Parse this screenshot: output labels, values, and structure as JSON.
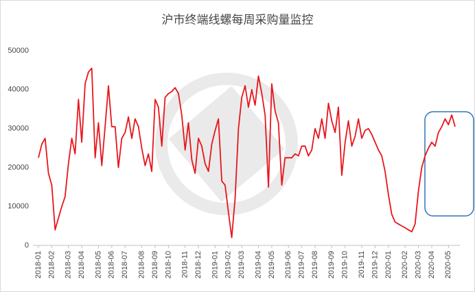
{
  "chart_data": {
    "type": "line",
    "title": "沪市终端线螺每周采购量监控",
    "categories": [
      "2018-01",
      null,
      null,
      null,
      "2018-02",
      null,
      null,
      null,
      null,
      "2018-03",
      null,
      null,
      null,
      "2018-04",
      null,
      null,
      null,
      null,
      "2018-05",
      null,
      null,
      null,
      "2018-06",
      null,
      null,
      null,
      "2018-07",
      null,
      null,
      null,
      null,
      "2018-08",
      null,
      null,
      null,
      "2018-09",
      null,
      null,
      null,
      "2018-10",
      null,
      null,
      null,
      null,
      "2018-11",
      null,
      null,
      null,
      "2018-12",
      null,
      null,
      null,
      null,
      "2019-01",
      null,
      null,
      null,
      "2019-02",
      null,
      null,
      null,
      "2019-03",
      null,
      null,
      null,
      null,
      "2019-04",
      null,
      null,
      null,
      "2019-05",
      null,
      null,
      null,
      null,
      "2019-06",
      null,
      null,
      null,
      "2019-07",
      null,
      null,
      null,
      "2019-08",
      null,
      null,
      null,
      null,
      "2019-09",
      null,
      null,
      null,
      "2019-10",
      null,
      null,
      null,
      null,
      "2019-11",
      null,
      null,
      null,
      "2019-12",
      null,
      null,
      null,
      "2020-01",
      null,
      null,
      null,
      null,
      "2020-02",
      null,
      null,
      null,
      "2020-03",
      null,
      null,
      null,
      "2020-04",
      null,
      null,
      null,
      null,
      "2020-05",
      null,
      null
    ],
    "series": [
      {
        "name": "沪市终端线螺每周采购量",
        "color": "#e8141b",
        "values": [
          22500,
          26000,
          27500,
          18500,
          15500,
          4000,
          7000,
          10000,
          12500,
          21000,
          27500,
          23500,
          37500,
          26500,
          41500,
          44500,
          45500,
          22500,
          31500,
          20500,
          30500,
          41000,
          30500,
          30500,
          20000,
          27500,
          29000,
          33000,
          27500,
          32500,
          30500,
          25000,
          20500,
          23500,
          19000,
          37500,
          35500,
          25500,
          38000,
          39000,
          39500,
          40500,
          39000,
          33500,
          24500,
          31500,
          22000,
          18500,
          27500,
          25500,
          21000,
          19000,
          26000,
          29500,
          32500,
          16500,
          15500,
          8500,
          2000,
          12000,
          30000,
          38000,
          41000,
          35500,
          40000,
          36000,
          43500,
          39000,
          33500,
          15000,
          41500,
          34500,
          31500,
          15500,
          22500,
          22500,
          22500,
          23500,
          23000,
          25500,
          25500,
          23000,
          24500,
          30000,
          27500,
          32500,
          27500,
          36500,
          32000,
          29000,
          35500,
          18000,
          26500,
          32000,
          25500,
          28000,
          32500,
          27500,
          29500,
          30000,
          28500,
          26500,
          24500,
          23000,
          19000,
          13000,
          8000,
          6000,
          5500,
          5000,
          4500,
          4000,
          3500,
          5500,
          14000,
          20000,
          23000,
          25000,
          26500,
          25500,
          29000,
          30500,
          32500,
          31000,
          33500,
          30500
        ]
      }
    ],
    "ylim": [
      0,
      50000
    ],
    "yticks": [
      0,
      10000,
      20000,
      30000,
      40000,
      50000
    ],
    "grid": false
  }
}
